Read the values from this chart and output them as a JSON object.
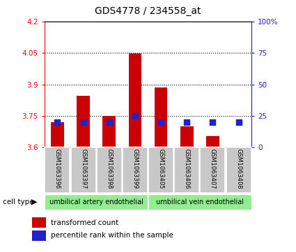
{
  "title": "GDS4778 / 234558_at",
  "samples": [
    "GSM1063396",
    "GSM1063397",
    "GSM1063398",
    "GSM1063399",
    "GSM1063405",
    "GSM1063406",
    "GSM1063407",
    "GSM1063408"
  ],
  "transformed_count": [
    3.72,
    3.845,
    3.75,
    4.049,
    3.885,
    3.7,
    3.655,
    3.602
  ],
  "percentile_rank": [
    20,
    20,
    20,
    25,
    20,
    20,
    20,
    20
  ],
  "y_min": 3.6,
  "y_max": 4.2,
  "y_ticks": [
    3.6,
    3.75,
    3.9,
    4.05,
    4.2
  ],
  "y_right_ticks": [
    0,
    25,
    50,
    75,
    100
  ],
  "bar_color": "#cc0000",
  "blue_color": "#2222cc",
  "group1_label": "umbilical artery endothelial",
  "group2_label": "umbilical vein endothelial",
  "cell_type_label": "cell type",
  "legend_red": "transformed count",
  "legend_blue": "percentile rank within the sample",
  "bar_width": 0.5,
  "blue_marker_size": 28
}
